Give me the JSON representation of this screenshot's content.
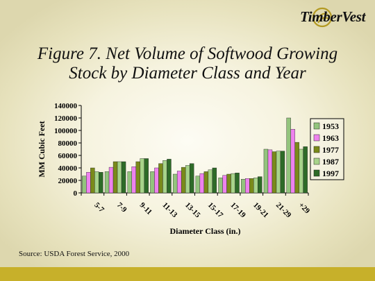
{
  "brand": {
    "name": "TimberVest"
  },
  "chart_data": {
    "type": "bar",
    "title_lines": [
      "Figure 7.  Net Volume of Softwood Growing",
      "Stock by Diameter Class and Year"
    ],
    "xlabel": "Diameter Class (in.)",
    "ylabel": "MM  Cubic Feet",
    "categories": [
      "5-7",
      "7-9",
      "9-11",
      "11-13",
      "13-15",
      "15-17",
      "17-19",
      "19-21",
      "21-29",
      "+29"
    ],
    "ylim": [
      0,
      140000
    ],
    "yticks": [
      "0",
      "20000",
      "40000",
      "60000",
      "80000",
      "100000",
      "120000",
      "140000"
    ],
    "legend_position": "right",
    "series": [
      {
        "name": "1953",
        "color": "#93c47d",
        "values": [
          27000,
          34000,
          34000,
          34000,
          30000,
          27000,
          24000,
          22000,
          70000,
          120000
        ]
      },
      {
        "name": "1963",
        "color": "#ee82ee",
        "values": [
          33000,
          41000,
          42000,
          40000,
          35000,
          31000,
          28000,
          23000,
          69000,
          102000
        ]
      },
      {
        "name": "1977",
        "color": "#7a8a1a",
        "values": [
          40000,
          50000,
          50000,
          47000,
          41000,
          34000,
          30000,
          23000,
          66000,
          81000
        ]
      },
      {
        "name": "1987",
        "color": "#a7d38a",
        "values": [
          34000,
          50000,
          55000,
          52000,
          44000,
          37000,
          31000,
          24000,
          67000,
          70000
        ]
      },
      {
        "name": "1997",
        "color": "#2e6b28",
        "values": [
          33000,
          50000,
          55000,
          54000,
          47000,
          40000,
          32000,
          26000,
          67000,
          74000
        ]
      }
    ]
  },
  "footer": {
    "source": "Source: USDA Forest Service, 2000"
  }
}
